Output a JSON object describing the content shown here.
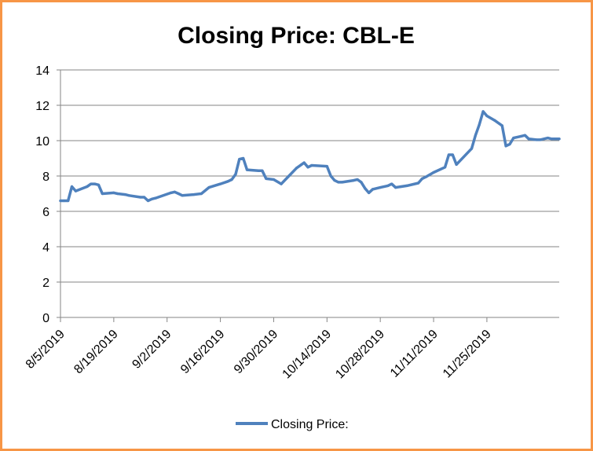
{
  "chart_data": {
    "type": "line",
    "title": "Closing Price:  CBL-E",
    "xlabel": "",
    "ylabel": "",
    "ylim": [
      0,
      14
    ],
    "yticks": [
      0,
      2,
      4,
      6,
      8,
      10,
      12,
      14
    ],
    "xlim": [
      "2019-08-05",
      "2019-12-14"
    ],
    "xticks": [
      "8/5/2019",
      "8/19/2019",
      "9/2/2019",
      "9/16/2019",
      "9/30/2019",
      "10/14/2019",
      "10/28/2019",
      "11/11/2019",
      "11/25/2019"
    ],
    "grid": "horizontal",
    "legend_position": "bottom",
    "line_color": "#4F81BD",
    "series": [
      {
        "name": "Closing Price:",
        "points": [
          [
            "2019-08-05",
            6.6
          ],
          [
            "2019-08-06",
            6.6
          ],
          [
            "2019-08-07",
            6.6
          ],
          [
            "2019-08-08",
            7.4
          ],
          [
            "2019-08-09",
            7.15
          ],
          [
            "2019-08-12",
            7.4
          ],
          [
            "2019-08-13",
            7.55
          ],
          [
            "2019-08-14",
            7.55
          ],
          [
            "2019-08-15",
            7.5
          ],
          [
            "2019-08-16",
            7.0
          ],
          [
            "2019-08-19",
            7.05
          ],
          [
            "2019-08-20",
            7.0
          ],
          [
            "2019-08-22",
            6.95
          ],
          [
            "2019-08-23",
            6.9
          ],
          [
            "2019-08-26",
            6.8
          ],
          [
            "2019-08-27",
            6.8
          ],
          [
            "2019-08-28",
            6.6
          ],
          [
            "2019-08-29",
            6.7
          ],
          [
            "2019-08-30",
            6.75
          ],
          [
            "2019-09-03",
            7.05
          ],
          [
            "2019-09-04",
            7.1
          ],
          [
            "2019-09-05",
            7.0
          ],
          [
            "2019-09-06",
            6.9
          ],
          [
            "2019-09-09",
            6.95
          ],
          [
            "2019-09-11",
            7.0
          ],
          [
            "2019-09-13",
            7.35
          ],
          [
            "2019-09-16",
            7.55
          ],
          [
            "2019-09-18",
            7.7
          ],
          [
            "2019-09-19",
            7.8
          ],
          [
            "2019-09-20",
            8.1
          ],
          [
            "2019-09-21",
            8.95
          ],
          [
            "2019-09-22",
            9.0
          ],
          [
            "2019-09-23",
            8.35
          ],
          [
            "2019-09-26",
            8.3
          ],
          [
            "2019-09-27",
            8.3
          ],
          [
            "2019-09-28",
            7.85
          ],
          [
            "2019-09-30",
            7.8
          ],
          [
            "2019-10-02",
            7.55
          ],
          [
            "2019-10-04",
            8.0
          ],
          [
            "2019-10-06",
            8.45
          ],
          [
            "2019-10-08",
            8.75
          ],
          [
            "2019-10-09",
            8.5
          ],
          [
            "2019-10-10",
            8.6
          ],
          [
            "2019-10-14",
            8.55
          ],
          [
            "2019-10-15",
            8.0
          ],
          [
            "2019-10-16",
            7.75
          ],
          [
            "2019-10-17",
            7.65
          ],
          [
            "2019-10-18",
            7.65
          ],
          [
            "2019-10-21",
            7.75
          ],
          [
            "2019-10-22",
            7.8
          ],
          [
            "2019-10-23",
            7.65
          ],
          [
            "2019-10-24",
            7.3
          ],
          [
            "2019-10-25",
            7.05
          ],
          [
            "2019-10-26",
            7.25
          ],
          [
            "2019-10-28",
            7.35
          ],
          [
            "2019-10-30",
            7.45
          ],
          [
            "2019-10-31",
            7.55
          ],
          [
            "2019-11-01",
            7.35
          ],
          [
            "2019-11-04",
            7.45
          ],
          [
            "2019-11-07",
            7.6
          ],
          [
            "2019-11-08",
            7.85
          ],
          [
            "2019-11-09",
            7.95
          ],
          [
            "2019-11-11",
            8.2
          ],
          [
            "2019-11-14",
            8.5
          ],
          [
            "2019-11-15",
            9.2
          ],
          [
            "2019-11-16",
            9.2
          ],
          [
            "2019-11-17",
            8.65
          ],
          [
            "2019-11-21",
            9.55
          ],
          [
            "2019-11-22",
            10.3
          ],
          [
            "2019-11-23",
            10.9
          ],
          [
            "2019-11-24",
            11.65
          ],
          [
            "2019-11-25",
            11.4
          ],
          [
            "2019-11-27",
            11.15
          ],
          [
            "2019-11-29",
            10.85
          ],
          [
            "2019-11-30",
            9.7
          ],
          [
            "2019-12-01",
            9.8
          ],
          [
            "2019-12-02",
            10.15
          ],
          [
            "2019-12-04",
            10.25
          ],
          [
            "2019-12-05",
            10.3
          ],
          [
            "2019-12-06",
            10.1
          ],
          [
            "2019-12-08",
            10.05
          ],
          [
            "2019-12-09",
            10.05
          ],
          [
            "2019-12-11",
            10.15
          ],
          [
            "2019-12-12",
            10.1
          ],
          [
            "2019-12-13",
            10.1
          ],
          [
            "2019-12-14",
            10.1
          ]
        ]
      }
    ]
  }
}
